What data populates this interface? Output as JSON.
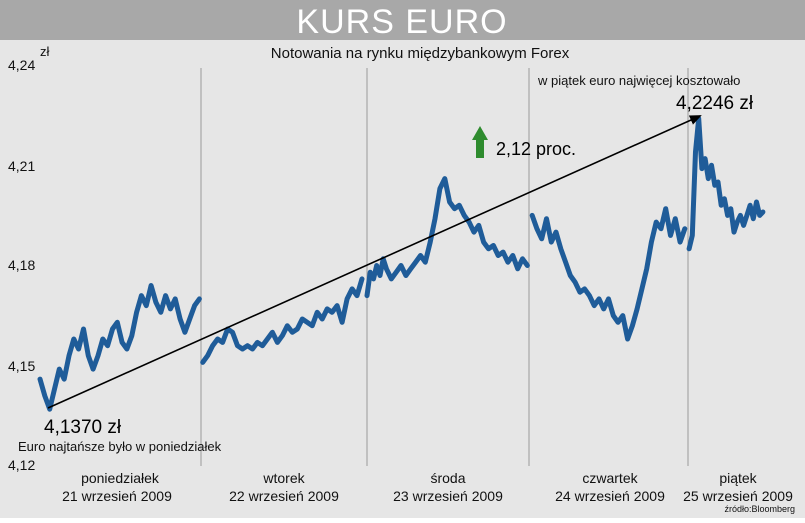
{
  "header": {
    "title": "KURS EURO",
    "subtitle": "Notowania na rynku międzybankowym Forex"
  },
  "colors": {
    "background": "#e6e6e6",
    "title_bar": "#a8a8a8",
    "line": "#1f5c99",
    "day_separator": "#9a9a9a",
    "arrow": "#000000",
    "up_arrow": "#2e8b2e"
  },
  "chart_data": {
    "type": "line",
    "title": "KURS EURO",
    "subtitle": "Notowania na rynku międzybankowym Forex",
    "ylabel": "zł",
    "ylim": [
      4.12,
      4.24
    ],
    "yticks": [
      "4,24",
      "4,21",
      "4,18",
      "4,15",
      "4,12"
    ],
    "ytick_values": [
      4.24,
      4.21,
      4.18,
      4.15,
      4.12
    ],
    "grid": false,
    "xlim": [
      0,
      5
    ],
    "days": [
      {
        "name": "poniedziałek",
        "date": "21 wrzesień 2009"
      },
      {
        "name": "wtorek",
        "date": "22 wrzesień 2009"
      },
      {
        "name": "środa",
        "date": "23 wrzesień 2009"
      },
      {
        "name": "czwartek",
        "date": "24 wrzesień 2009"
      },
      {
        "name": "piątek",
        "date": "25 wrzesień 2009"
      }
    ],
    "series": [
      {
        "x": [
          0.0,
          0.03,
          0.06,
          0.09,
          0.12,
          0.15,
          0.18,
          0.21,
          0.24,
          0.27,
          0.3,
          0.33,
          0.36,
          0.39,
          0.42,
          0.45,
          0.48,
          0.51,
          0.54,
          0.57,
          0.6,
          0.63,
          0.66,
          0.69,
          0.72,
          0.75,
          0.78,
          0.81,
          0.84,
          0.87,
          0.9,
          0.93,
          0.96,
          0.99,
          1.01,
          1.04,
          1.07,
          1.1,
          1.13,
          1.16,
          1.19,
          1.22,
          1.25,
          1.28,
          1.31,
          1.34,
          1.37,
          1.4,
          1.43,
          1.46,
          1.49,
          1.52,
          1.55,
          1.58,
          1.61,
          1.64,
          1.67,
          1.7,
          1.73,
          1.76,
          1.79,
          1.82,
          1.85,
          1.88,
          1.91,
          1.94,
          1.97,
          2.0,
          2.02,
          2.04,
          2.06,
          2.08,
          2.1,
          2.12,
          2.15,
          2.18,
          2.21,
          2.24,
          2.27,
          2.3,
          2.33,
          2.36,
          2.39,
          2.42,
          2.45,
          2.48,
          2.51,
          2.54,
          2.57,
          2.6,
          2.63,
          2.66,
          2.69,
          2.72,
          2.75,
          2.78,
          2.81,
          2.84,
          2.87,
          2.9,
          2.93,
          2.96,
          2.99,
          3.02,
          3.05,
          3.08,
          3.11,
          3.14,
          3.17,
          3.2,
          3.23,
          3.26,
          3.29,
          3.32,
          3.35,
          3.38,
          3.41,
          3.44,
          3.47,
          3.5,
          3.53,
          3.56,
          3.59,
          3.62,
          3.65,
          3.68,
          3.71,
          3.74,
          3.77,
          3.8,
          3.83,
          3.86,
          3.89,
          3.92,
          3.95,
          3.98,
          4.01,
          4.04,
          4.07,
          4.1,
          4.13,
          4.16,
          4.19,
          4.22,
          4.25,
          4.28,
          4.31,
          4.34,
          4.37,
          4.4,
          4.43,
          4.46,
          4.49,
          4.52,
          4.55,
          4.58,
          4.61,
          4.64,
          4.67,
          4.7
        ],
        "y": [
          4.146,
          4.141,
          4.137,
          4.143,
          4.149,
          4.146,
          4.153,
          4.158,
          4.155,
          4.161,
          4.153,
          4.149,
          4.153,
          4.158,
          4.156,
          4.161,
          4.163,
          4.157,
          4.155,
          4.159,
          4.166,
          4.171,
          4.168,
          4.174,
          4.169,
          4.166,
          4.171,
          4.167,
          4.17,
          4.164,
          4.16,
          4.164,
          4.168,
          4.17,
          4.151,
          4.153,
          4.156,
          4.158,
          4.157,
          4.161,
          4.16,
          4.156,
          4.155,
          4.156,
          4.155,
          4.157,
          4.156,
          4.158,
          4.16,
          4.157,
          4.159,
          4.162,
          4.16,
          4.161,
          4.164,
          4.163,
          4.162,
          4.166,
          4.164,
          4.167,
          4.166,
          4.168,
          4.163,
          4.17,
          4.173,
          4.171,
          4.176,
          4.171,
          4.178,
          4.176,
          4.18,
          4.177,
          4.182,
          4.179,
          4.176,
          4.178,
          4.18,
          4.177,
          4.179,
          4.181,
          4.183,
          4.181,
          4.187,
          4.194,
          4.203,
          4.206,
          4.199,
          4.197,
          4.198,
          4.195,
          4.193,
          4.19,
          4.192,
          4.187,
          4.185,
          4.186,
          4.183,
          4.184,
          4.181,
          4.183,
          4.179,
          4.182,
          4.18,
          4.195,
          4.191,
          4.188,
          4.194,
          4.187,
          4.19,
          4.185,
          4.181,
          4.177,
          4.175,
          4.172,
          4.173,
          4.171,
          4.168,
          4.17,
          4.167,
          4.17,
          4.165,
          4.163,
          4.165,
          4.158,
          4.162,
          4.167,
          4.173,
          4.179,
          4.187,
          4.193,
          4.191,
          4.197,
          4.189,
          4.194,
          4.187,
          4.191,
          4.185,
          4.189,
          4.214,
          4.224,
          4.209,
          4.212,
          4.206,
          4.21,
          4.204,
          4.205,
          4.198,
          4.2,
          4.195,
          4.197,
          4.19,
          4.193,
          4.195,
          4.192,
          4.195,
          4.198,
          4.194,
          4.199,
          4.195,
          4.196
        ]
      }
    ],
    "annotations": {
      "min_value": "4,1370 zł",
      "min_text": "Euro najtańsze było w poniedziałek",
      "max_value": "4,2246 zł",
      "max_text": "w piątek euro najwięcej kosztowało",
      "change": "2,12 proc."
    },
    "source": "źródło:Bloomberg"
  }
}
